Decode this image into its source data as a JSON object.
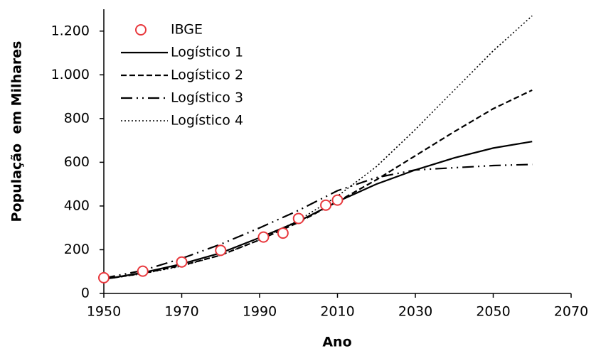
{
  "chart_data": {
    "type": "line",
    "xlabel": "Ano",
    "ylabel": "População  em Milhares",
    "xlim": [
      1950,
      2070
    ],
    "xticks": [
      1950,
      1970,
      1990,
      2010,
      2030,
      2050,
      2070
    ],
    "ylim": [
      0,
      1300
    ],
    "yticks": [
      0,
      200,
      400,
      600,
      800,
      {
        "value": 1000,
        "label": "1.000"
      },
      {
        "value": 1200,
        "label": "1.200"
      }
    ],
    "legend": "upper left",
    "series": [
      {
        "name": "IBGE",
        "type": "scatter",
        "marker": "o",
        "color": "#e8383d",
        "x": [
          1950,
          1960,
          1970,
          1980,
          1991,
          1996,
          2000,
          2007,
          2010
        ],
        "values": [
          72,
          102,
          144,
          197,
          258,
          276,
          343,
          404,
          427
        ]
      },
      {
        "name": "Logístico 1",
        "dash": "solid",
        "color": "#000000",
        "x": [
          1950,
          1960,
          1970,
          1980,
          1990,
          2000,
          2010,
          2020,
          2030,
          2040,
          2050,
          2060
        ],
        "values": [
          65,
          95,
          135,
          185,
          255,
          330,
          420,
          500,
          565,
          620,
          665,
          695
        ]
      },
      {
        "name": "Logístico 2",
        "dash": "dashed",
        "color": "#000000",
        "x": [
          1950,
          1960,
          1970,
          1980,
          1990,
          2000,
          2010,
          2020,
          2030,
          2040,
          2050,
          2060
        ],
        "values": [
          65,
          92,
          128,
          175,
          245,
          325,
          420,
          520,
          630,
          740,
          845,
          930
        ]
      },
      {
        "name": "Logístico 3",
        "dash": "dashdotdot",
        "color": "#000000",
        "x": [
          1950,
          1960,
          1970,
          1980,
          1990,
          2000,
          2010,
          2020,
          2030,
          2040,
          2050,
          2060
        ],
        "values": [
          70,
          105,
          160,
          225,
          300,
          380,
          470,
          530,
          565,
          575,
          585,
          590
        ]
      },
      {
        "name": "Logístico 4",
        "dash": "dotted",
        "color": "#000000",
        "x": [
          1950,
          1960,
          1970,
          1980,
          1990,
          2000,
          2010,
          2020,
          2030,
          2040,
          2050,
          2060
        ],
        "values": [
          65,
          90,
          125,
          175,
          245,
          335,
          445,
          580,
          750,
          930,
          1110,
          1270
        ]
      }
    ]
  }
}
